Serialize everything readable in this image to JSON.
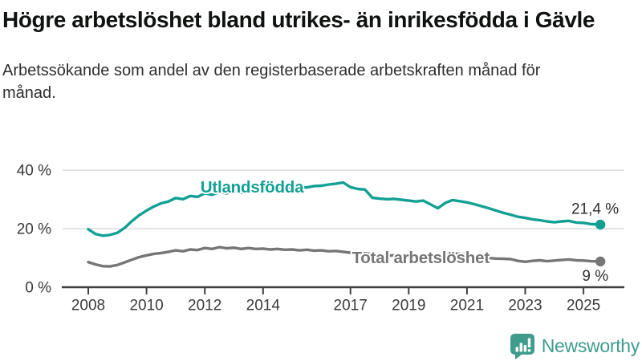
{
  "header": {
    "title": "Högre arbetslöshet bland utrikes- än inrikesfödda i Gävle",
    "subtitle": "Arbetssökande som andel av den registerbaserade arbetskraften månad för månad."
  },
  "footer": {
    "brand": "Newsworthy"
  },
  "colors": {
    "teal": "#13a094",
    "gray": "#767676",
    "ink": "#0f1310",
    "axis_text": "#3a3a3a",
    "grid": "#dcdcdc",
    "logo_teal": "#3f9c8d"
  },
  "chart_data": {
    "type": "line",
    "title": "Högre arbetslöshet bland utrikes- än inrikesfödda i Gävle",
    "subtitle": "Arbetssökande som andel av den registerbaserade arbetskraften månad för månad.",
    "xlabel": "",
    "ylabel": "",
    "grid": true,
    "legend_position": "inline-labels",
    "x_axis": {
      "ticks": [
        2008,
        2010,
        2012,
        2014,
        2017,
        2019,
        2021,
        2023,
        2025
      ]
    },
    "y_axis": {
      "range": [
        0,
        44
      ],
      "ticks": [
        {
          "value": 0,
          "label": "0 %"
        },
        {
          "value": 20,
          "label": "20 %"
        },
        {
          "value": 40,
          "label": "40 %"
        }
      ]
    },
    "series": [
      {
        "name": "Utlandsfödda",
        "color": "#13a094",
        "end_label": "21,4 %",
        "label_anchor": {
          "year": 2011.85,
          "value": 32.4
        },
        "points": [
          [
            2008.0,
            19.8
          ],
          [
            2008.25,
            18.2
          ],
          [
            2008.5,
            17.6
          ],
          [
            2008.75,
            17.9
          ],
          [
            2009.0,
            18.6
          ],
          [
            2009.25,
            20.3
          ],
          [
            2009.5,
            22.6
          ],
          [
            2009.75,
            24.6
          ],
          [
            2010.0,
            26.2
          ],
          [
            2010.25,
            27.6
          ],
          [
            2010.5,
            28.7
          ],
          [
            2010.75,
            29.3
          ],
          [
            2011.0,
            30.5
          ],
          [
            2011.25,
            30.1
          ],
          [
            2011.5,
            31.2
          ],
          [
            2011.75,
            30.9
          ],
          [
            2012.0,
            32.1
          ],
          [
            2012.25,
            31.6
          ],
          [
            2012.5,
            32.5
          ],
          [
            2012.75,
            32.1
          ],
          [
            2013.0,
            32.8
          ],
          [
            2013.25,
            32.3
          ],
          [
            2013.5,
            33.0
          ],
          [
            2013.75,
            32.6
          ],
          [
            2014.0,
            32.9
          ],
          [
            2014.25,
            33.2
          ],
          [
            2014.5,
            33.6
          ],
          [
            2014.75,
            33.3
          ],
          [
            2015.0,
            33.9
          ],
          [
            2015.25,
            34.3
          ],
          [
            2015.5,
            34.1
          ],
          [
            2015.75,
            34.6
          ],
          [
            2016.0,
            34.7
          ],
          [
            2016.25,
            35.1
          ],
          [
            2016.5,
            35.4
          ],
          [
            2016.75,
            35.8
          ],
          [
            2017.0,
            34.2
          ],
          [
            2017.25,
            33.6
          ],
          [
            2017.5,
            33.4
          ],
          [
            2017.75,
            30.6
          ],
          [
            2018.0,
            30.3
          ],
          [
            2018.25,
            30.1
          ],
          [
            2018.5,
            30.2
          ],
          [
            2018.75,
            29.9
          ],
          [
            2019.0,
            29.6
          ],
          [
            2019.25,
            29.3
          ],
          [
            2019.5,
            29.6
          ],
          [
            2019.75,
            28.3
          ],
          [
            2020.0,
            27.0
          ],
          [
            2020.25,
            28.8
          ],
          [
            2020.5,
            29.8
          ],
          [
            2020.75,
            29.4
          ],
          [
            2021.0,
            29.0
          ],
          [
            2021.25,
            28.4
          ],
          [
            2021.5,
            27.7
          ],
          [
            2021.75,
            27.0
          ],
          [
            2022.0,
            26.2
          ],
          [
            2022.25,
            25.4
          ],
          [
            2022.5,
            24.8
          ],
          [
            2022.75,
            24.1
          ],
          [
            2023.0,
            23.7
          ],
          [
            2023.25,
            23.2
          ],
          [
            2023.5,
            22.9
          ],
          [
            2023.75,
            22.5
          ],
          [
            2024.0,
            22.2
          ],
          [
            2024.25,
            22.5
          ],
          [
            2024.5,
            22.7
          ],
          [
            2024.75,
            22.1
          ],
          [
            2025.0,
            22.0
          ],
          [
            2025.25,
            21.6
          ],
          [
            2025.58,
            21.4
          ]
        ]
      },
      {
        "name": "Total arbetslöshet",
        "color": "#767676",
        "end_label": "9 %",
        "label_anchor": {
          "year": 2017.05,
          "value": 8.2
        },
        "points": [
          [
            2008.0,
            8.6
          ],
          [
            2008.25,
            7.8
          ],
          [
            2008.5,
            7.2
          ],
          [
            2008.75,
            7.1
          ],
          [
            2009.0,
            7.6
          ],
          [
            2009.25,
            8.5
          ],
          [
            2009.5,
            9.4
          ],
          [
            2009.75,
            10.3
          ],
          [
            2010.0,
            10.9
          ],
          [
            2010.25,
            11.4
          ],
          [
            2010.5,
            11.7
          ],
          [
            2010.75,
            12.1
          ],
          [
            2011.0,
            12.6
          ],
          [
            2011.25,
            12.3
          ],
          [
            2011.5,
            12.9
          ],
          [
            2011.75,
            12.7
          ],
          [
            2012.0,
            13.4
          ],
          [
            2012.25,
            13.1
          ],
          [
            2012.5,
            13.7
          ],
          [
            2012.75,
            13.3
          ],
          [
            2013.0,
            13.5
          ],
          [
            2013.25,
            13.1
          ],
          [
            2013.5,
            13.4
          ],
          [
            2013.75,
            13.1
          ],
          [
            2014.0,
            13.2
          ],
          [
            2014.25,
            12.9
          ],
          [
            2014.5,
            13.1
          ],
          [
            2014.75,
            12.8
          ],
          [
            2015.0,
            12.9
          ],
          [
            2015.25,
            12.6
          ],
          [
            2015.5,
            12.8
          ],
          [
            2015.75,
            12.5
          ],
          [
            2016.0,
            12.6
          ],
          [
            2016.25,
            12.3
          ],
          [
            2016.5,
            12.4
          ],
          [
            2016.75,
            12.1
          ],
          [
            2017.0,
            11.8
          ],
          [
            2017.25,
            11.5
          ],
          [
            2017.5,
            11.6
          ],
          [
            2017.75,
            11.3
          ],
          [
            2018.0,
            11.0
          ],
          [
            2018.25,
            10.8
          ],
          [
            2018.5,
            10.9
          ],
          [
            2018.75,
            10.6
          ],
          [
            2019.0,
            10.4
          ],
          [
            2019.25,
            10.5
          ],
          [
            2019.5,
            10.6
          ],
          [
            2019.75,
            10.3
          ],
          [
            2020.0,
            10.1
          ],
          [
            2020.25,
            11.1
          ],
          [
            2020.5,
            11.5
          ],
          [
            2020.75,
            11.4
          ],
          [
            2021.0,
            11.1
          ],
          [
            2021.25,
            10.7
          ],
          [
            2021.5,
            10.3
          ],
          [
            2021.75,
            10.0
          ],
          [
            2022.0,
            9.8
          ],
          [
            2022.25,
            9.7
          ],
          [
            2022.5,
            9.6
          ],
          [
            2022.75,
            9.0
          ],
          [
            2023.0,
            8.7
          ],
          [
            2023.25,
            9.0
          ],
          [
            2023.5,
            9.2
          ],
          [
            2023.75,
            8.9
          ],
          [
            2024.0,
            9.1
          ],
          [
            2024.25,
            9.3
          ],
          [
            2024.5,
            9.5
          ],
          [
            2024.75,
            9.2
          ],
          [
            2025.0,
            9.1
          ],
          [
            2025.25,
            8.9
          ],
          [
            2025.58,
            8.8
          ]
        ]
      }
    ]
  }
}
